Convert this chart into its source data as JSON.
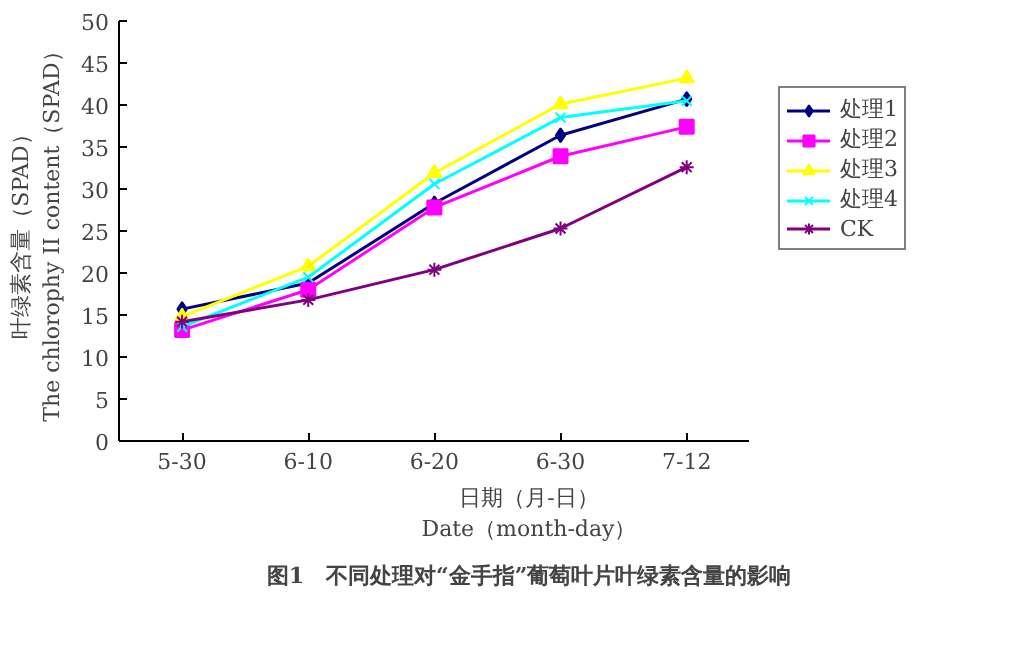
{
  "chart_data": {
    "type": "line",
    "xlabel": "日期（月-日）\nDate（month-day）",
    "ylabel": "叶绿素含量（SPAD）\nThe chlorophy II content（SPAD）",
    "annotations": [
      "图1　不同处理对“金手指”葡萄叶片叶绿素含量的影响"
    ],
    "categories": [
      "5-30",
      "6-10",
      "6-20",
      "6-30",
      "7-12"
    ],
    "ylim": [
      0,
      50
    ],
    "yticks": [
      0,
      5,
      10,
      15,
      20,
      25,
      30,
      35,
      40,
      45,
      50
    ],
    "grid": false,
    "legend": "right",
    "line_style": "solid",
    "series": [
      {
        "name": "处理1",
        "color": "#000080",
        "marker": "diamond",
        "values": [
          15.7,
          18.8,
          28.3,
          36.4,
          40.7
        ]
      },
      {
        "name": "处理2",
        "color": "#ff00ff",
        "marker": "square",
        "values": [
          13.2,
          18.0,
          27.8,
          33.9,
          37.4
        ]
      },
      {
        "name": "处理3",
        "color": "#ffff00",
        "marker": "triangle",
        "values": [
          14.8,
          20.8,
          31.9,
          40.1,
          43.2
        ]
      },
      {
        "name": "处理4",
        "color": "#00ffff",
        "marker": "x",
        "values": [
          13.6,
          19.5,
          30.6,
          38.5,
          40.5
        ]
      },
      {
        "name": "CK",
        "color": "#800080",
        "marker": "cross",
        "values": [
          14.2,
          16.8,
          20.4,
          25.3,
          32.6
        ]
      }
    ]
  }
}
